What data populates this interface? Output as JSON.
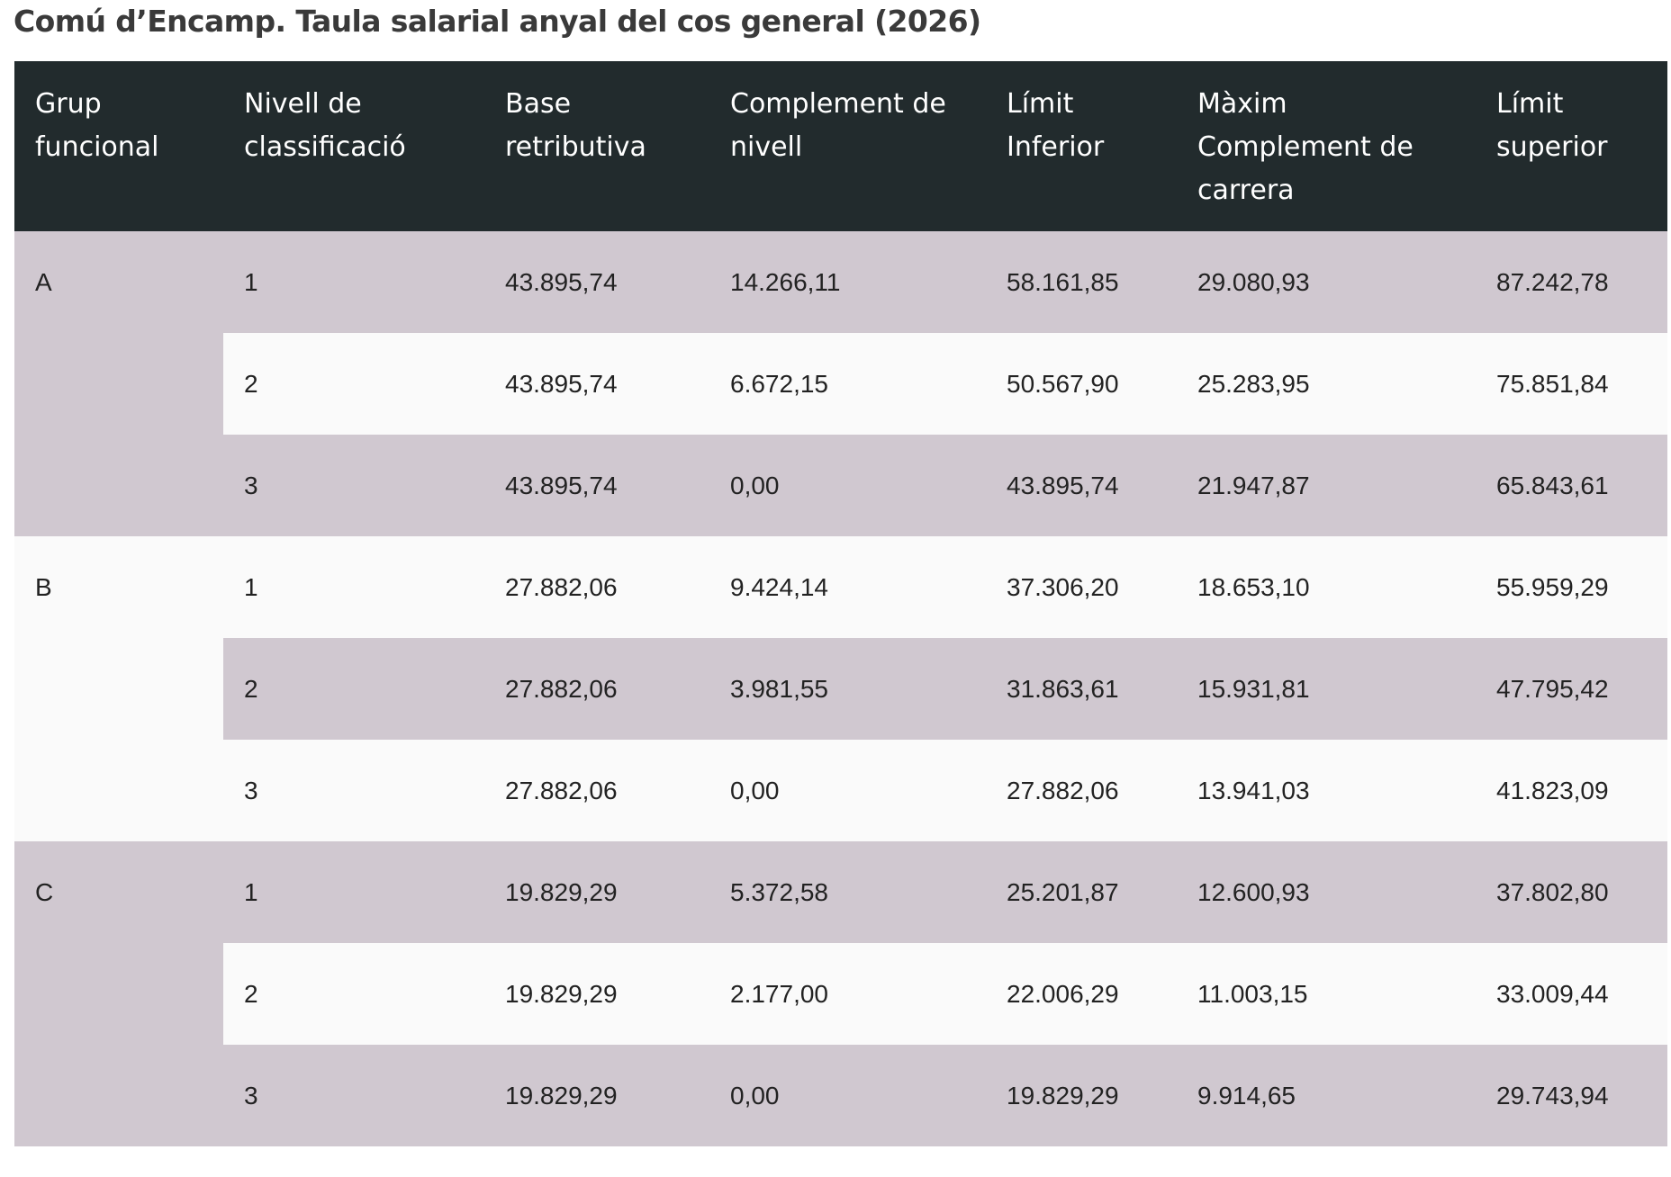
{
  "title": "Comú d’Encamp. Taula salarial anyal del cos general (2026)",
  "table": {
    "headers": [
      "Grup funcional",
      "Nivell de classificació",
      "Base retributiva",
      "Complement de nivell",
      "Límit Inferior",
      "Màxim Complement de carrera",
      "Límit superior"
    ],
    "groups": [
      {
        "label": "A",
        "rows": [
          [
            "1",
            "43.895,74",
            "14.266,11",
            "58.161,85",
            "29.080,93",
            "87.242,78"
          ],
          [
            "2",
            "43.895,74",
            "6.672,15",
            "50.567,90",
            "25.283,95",
            "75.851,84"
          ],
          [
            "3",
            "43.895,74",
            "0,00",
            "43.895,74",
            "21.947,87",
            "65.843,61"
          ]
        ]
      },
      {
        "label": "B",
        "rows": [
          [
            "1",
            "27.882,06",
            "9.424,14",
            "37.306,20",
            "18.653,10",
            "55.959,29"
          ],
          [
            "2",
            "27.882,06",
            "3.981,55",
            "31.863,61",
            "15.931,81",
            "47.795,42"
          ],
          [
            "3",
            "27.882,06",
            "0,00",
            "27.882,06",
            "13.941,03",
            "41.823,09"
          ]
        ]
      },
      {
        "label": "C",
        "rows": [
          [
            "1",
            "19.829,29",
            "5.372,58",
            "25.201,87",
            "12.600,93",
            "37.802,80"
          ],
          [
            "2",
            "19.829,29",
            "2.177,00",
            "22.006,29",
            "11.003,15",
            "33.009,44"
          ],
          [
            "3",
            "19.829,29",
            "0,00",
            "19.829,29",
            "9.914,65",
            "29.743,94"
          ]
        ]
      }
    ]
  }
}
